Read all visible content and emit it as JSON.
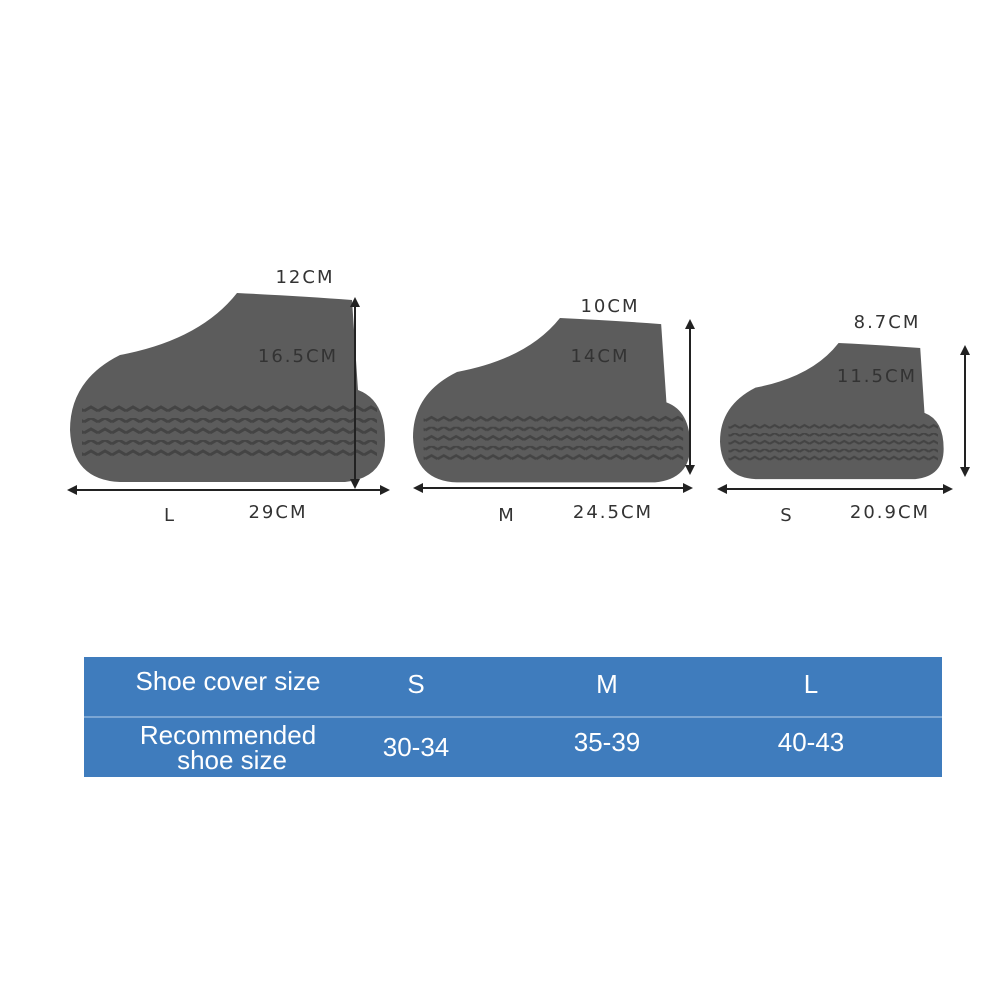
{
  "shoes": [
    {
      "size": "L",
      "length": "29CM",
      "height": "16.5CM",
      "opening": "12CM"
    },
    {
      "size": "M",
      "length": "24.5CM",
      "height": "14CM",
      "opening": "10CM"
    },
    {
      "size": "S",
      "length": "20.9CM",
      "height": "11.5CM",
      "opening": "8.7CM"
    }
  ],
  "table": {
    "rows": [
      {
        "label": [
          "Shoe cover size"
        ],
        "cells": [
          "S",
          "M",
          "L"
        ]
      },
      {
        "label": [
          "Recommended",
          "shoe size"
        ],
        "cells": [
          "30-34",
          "35-39",
          "40-43"
        ]
      }
    ]
  }
}
